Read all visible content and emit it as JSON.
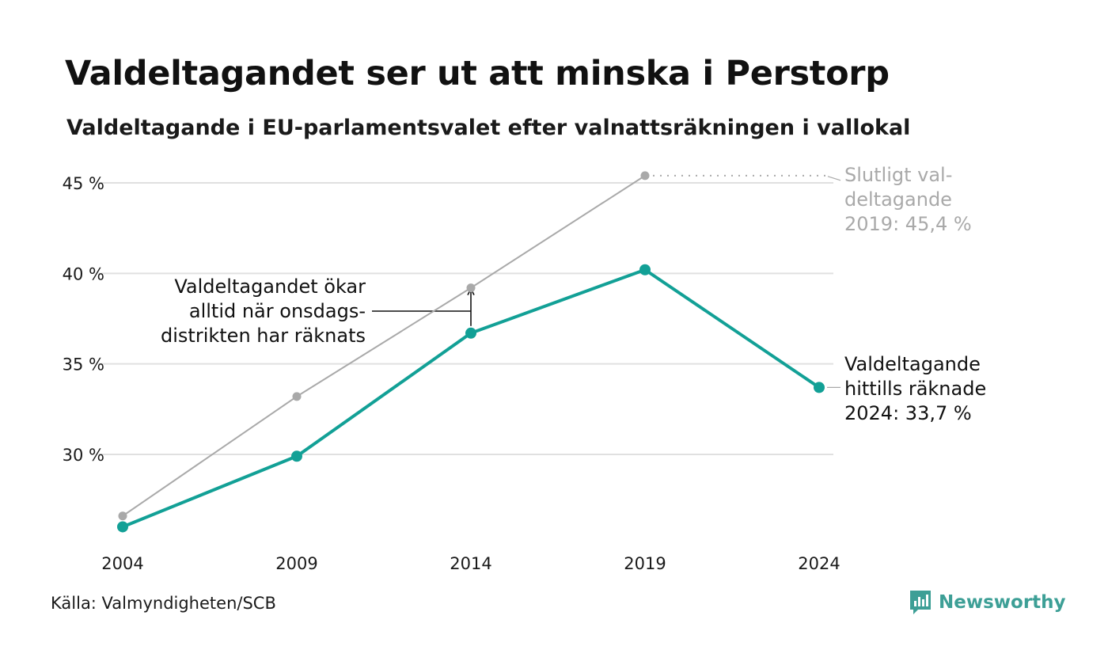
{
  "title": "Valdeltagandet ser ut att minska i Perstorp",
  "subtitle": "Valdeltagande i EU-parlamentsvalet efter valnattsräkningen i vallokal",
  "source": "Källa: Valmyndigheten/SCB",
  "brand": "Newsworthy",
  "icon": "newsworthy-logo-icon",
  "colors": {
    "accent": "#12a096",
    "secondary": "#a9a9a9",
    "grid": "#e0e0e0",
    "brand": "#3d9f96"
  },
  "chart_data": {
    "type": "line",
    "x": [
      2004,
      2009,
      2014,
      2019,
      2024
    ],
    "x_tick_labels": [
      "2004",
      "2009",
      "2014",
      "2019",
      "2024"
    ],
    "ylim": [
      25,
      46
    ],
    "y_ticks": [
      30,
      35,
      40,
      45
    ],
    "y_tick_labels": [
      "30 %",
      "35 %",
      "40 %",
      "45 %"
    ],
    "grid": true,
    "series": [
      {
        "role": "final",
        "color": "#a9a9a9",
        "values": [
          26.6,
          33.2,
          39.2,
          45.4,
          null
        ]
      },
      {
        "role": "election-night",
        "color": "#12a096",
        "values": [
          26.0,
          29.9,
          36.7,
          40.2,
          33.7
        ]
      }
    ],
    "annotations": {
      "final_label": [
        "Slutligt val-",
        "deltagande",
        "2019: 45,4 %"
      ],
      "current_label": [
        "Valdeltagande",
        "hittills räknade",
        "2024: 33,7 %"
      ],
      "note_label": [
        "Valdeltagandet ökar",
        "alltid när onsdags-",
        "distrikten har räknats"
      ]
    }
  }
}
